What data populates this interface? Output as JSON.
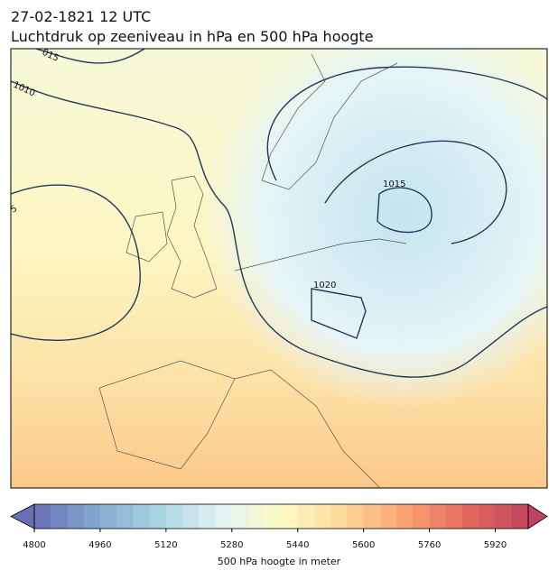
{
  "header": {
    "date": "27-02-1821 12 UTC",
    "title": "Luchtdruk op zeeniveau in hPa en 500 hPa hoogte"
  },
  "contour_labels": [
    "015",
    "1010",
    "1015",
    "1020",
    "5"
  ],
  "colorbar": {
    "label": "500 hPa hoogte in meter",
    "lim": [
      4800,
      6000
    ],
    "ticks": [
      4800,
      4960,
      5120,
      5280,
      5440,
      5600,
      5760,
      5920
    ],
    "colors": [
      "#6a6fb5",
      "#84a9d0",
      "#a9d4e4",
      "#e2f2f4",
      "#fdfbc6",
      "#fdd99a",
      "#f9a373",
      "#e5695e",
      "#c0435f"
    ]
  }
}
